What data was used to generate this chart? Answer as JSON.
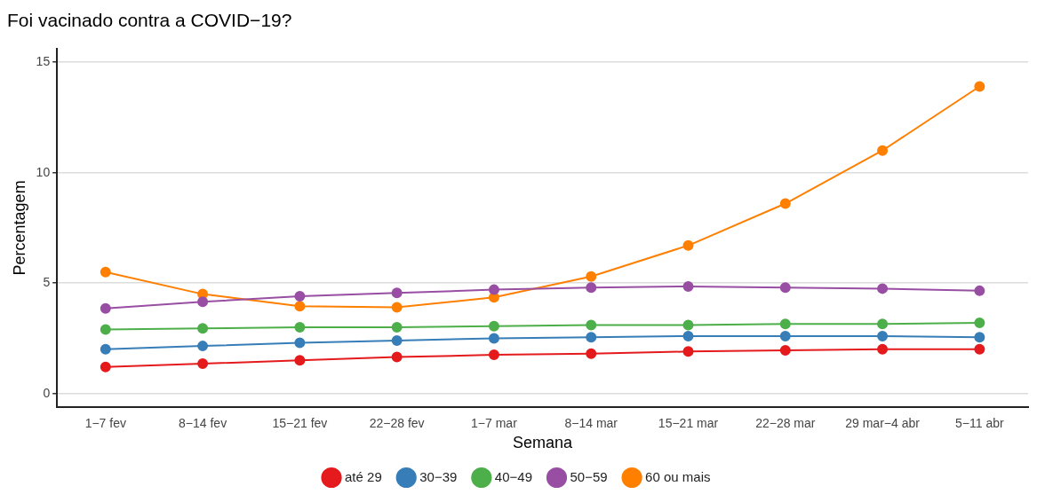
{
  "chart_data": {
    "type": "line",
    "title": "Foi vacinado contra a COVID−19?",
    "xlabel": "Semana",
    "ylabel": "Percentagem",
    "categories": [
      "1−7 fev",
      "8−14 fev",
      "15−21 fev",
      "22−28 fev",
      "1−7 mar",
      "8−14 mar",
      "15−21 mar",
      "22−28 mar",
      "29 mar−4 abr",
      "5−11 abr"
    ],
    "series": [
      {
        "name": "até 29",
        "color": "#e41a1c",
        "values": [
          1.2,
          1.35,
          1.5,
          1.65,
          1.75,
          1.8,
          1.9,
          1.95,
          2.0,
          2.0
        ]
      },
      {
        "name": "30−39",
        "color": "#377eb8",
        "values": [
          2.0,
          2.15,
          2.3,
          2.4,
          2.5,
          2.55,
          2.6,
          2.6,
          2.6,
          2.55
        ]
      },
      {
        "name": "40−49",
        "color": "#4daf4a",
        "values": [
          2.9,
          2.95,
          3.0,
          3.0,
          3.05,
          3.1,
          3.1,
          3.15,
          3.15,
          3.2
        ]
      },
      {
        "name": "50−59",
        "color": "#984ea3",
        "values": [
          3.85,
          4.15,
          4.4,
          4.55,
          4.7,
          4.8,
          4.85,
          4.8,
          4.75,
          4.65
        ]
      },
      {
        "name": "60 ou mais",
        "color": "#ff7f00",
        "values": [
          5.5,
          4.5,
          3.95,
          3.9,
          4.35,
          5.3,
          6.7,
          8.6,
          11.0,
          13.9
        ]
      }
    ],
    "ylim": [
      -0.6,
      15.6
    ],
    "yticks": [
      0,
      5,
      10,
      15
    ],
    "grid": "y",
    "legend": "bottom",
    "marker": "circle",
    "line_style": "solid"
  }
}
